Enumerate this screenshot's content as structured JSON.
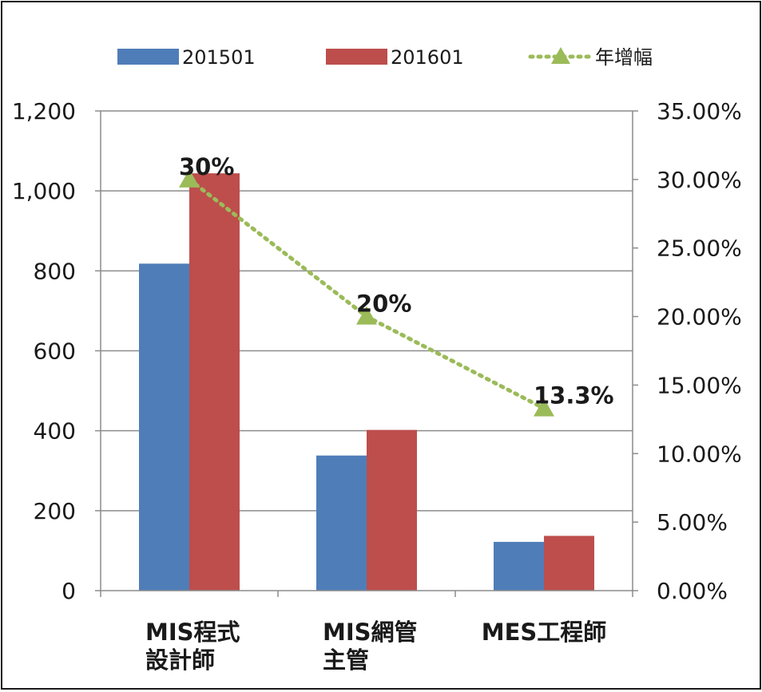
{
  "chart_data": {
    "type": "bar",
    "categories": [
      [
        "MIS程式",
        "設計師"
      ],
      [
        "MIS網管",
        "主管"
      ],
      [
        "MES工程師"
      ]
    ],
    "series": [
      {
        "name": "201501",
        "kind": "bar",
        "axis": "left",
        "color": "#4f7db8",
        "values": [
          818,
          338,
          122
        ]
      },
      {
        "name": "201601",
        "kind": "bar",
        "axis": "left",
        "color": "#bd4e4c",
        "values": [
          1044,
          402,
          137
        ]
      },
      {
        "name": "年增幅",
        "kind": "line",
        "axis": "right",
        "color": "#9bbb59",
        "marker": "triangle",
        "line_style": "dotted",
        "values": [
          0.3,
          0.2,
          0.133
        ],
        "data_labels": [
          "30%",
          "20%",
          "13.3%"
        ]
      }
    ],
    "y_left": {
      "range": [
        0,
        1200
      ],
      "ticks": [
        0,
        200,
        400,
        600,
        800,
        1000,
        1200
      ],
      "tick_labels": [
        "0",
        "200",
        "400",
        "600",
        "800",
        "1,000",
        "1,200"
      ]
    },
    "y_right": {
      "range": [
        0,
        0.35
      ],
      "ticks": [
        0,
        0.05,
        0.1,
        0.15,
        0.2,
        0.25,
        0.3,
        0.35
      ],
      "tick_labels": [
        "0.00%",
        "5.00%",
        "10.00%",
        "15.00%",
        "20.00%",
        "25.00%",
        "30.00%",
        "35.00%"
      ]
    },
    "grid": true,
    "legend": "top",
    "legend_labels": [
      "201501",
      "201601",
      "年增幅"
    ]
  }
}
